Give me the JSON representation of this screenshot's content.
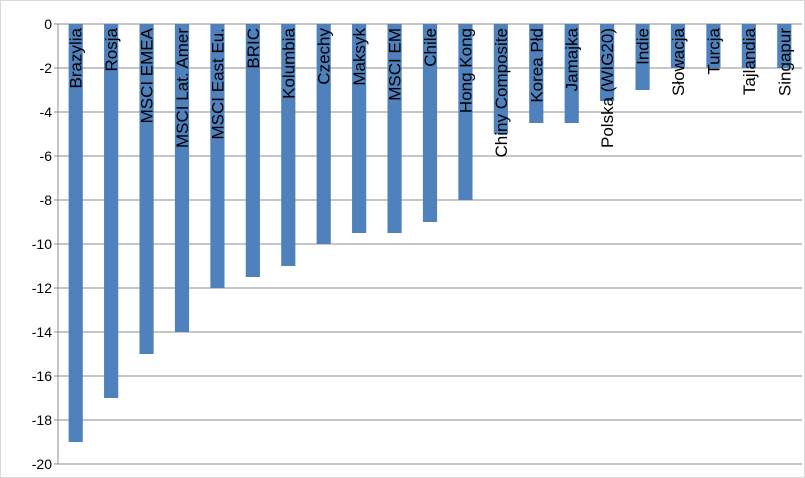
{
  "chart_data": {
    "type": "bar",
    "orientation": "vertical",
    "title": "",
    "xlabel": "",
    "ylabel": "",
    "ylim": [
      -20,
      0
    ],
    "ytick_step": 2,
    "yticks": [
      "0",
      "-2",
      "-4",
      "-6",
      "-8",
      "-10",
      "-12",
      "-14",
      "-16",
      "-18",
      "-20"
    ],
    "grid": true,
    "legend": "none",
    "bar_color": "#4F81BD",
    "categories": [
      "Brazylia",
      "Rosja",
      "MSCI EMEA",
      "MSCI Lat. Amer",
      "MSCI East Eu.",
      "BRIC",
      "Kolumbia",
      "Czechy",
      "Maksyk",
      "MSCI EM",
      "Chile",
      "Hong Kong",
      "Chiny Composite",
      "Korea Płd",
      "Jamajka",
      "Polska (WIG20)",
      "Indie",
      "Słowacja",
      "Turcja",
      "Tajlandia",
      "Singapur"
    ],
    "values": [
      -19,
      -17,
      -15,
      -14,
      -12,
      -11.5,
      -11,
      -10,
      -9.5,
      -9.5,
      -9,
      -8,
      -5,
      -4.5,
      -4.5,
      -3.5,
      -3,
      -2,
      -2,
      -2,
      -2
    ]
  }
}
